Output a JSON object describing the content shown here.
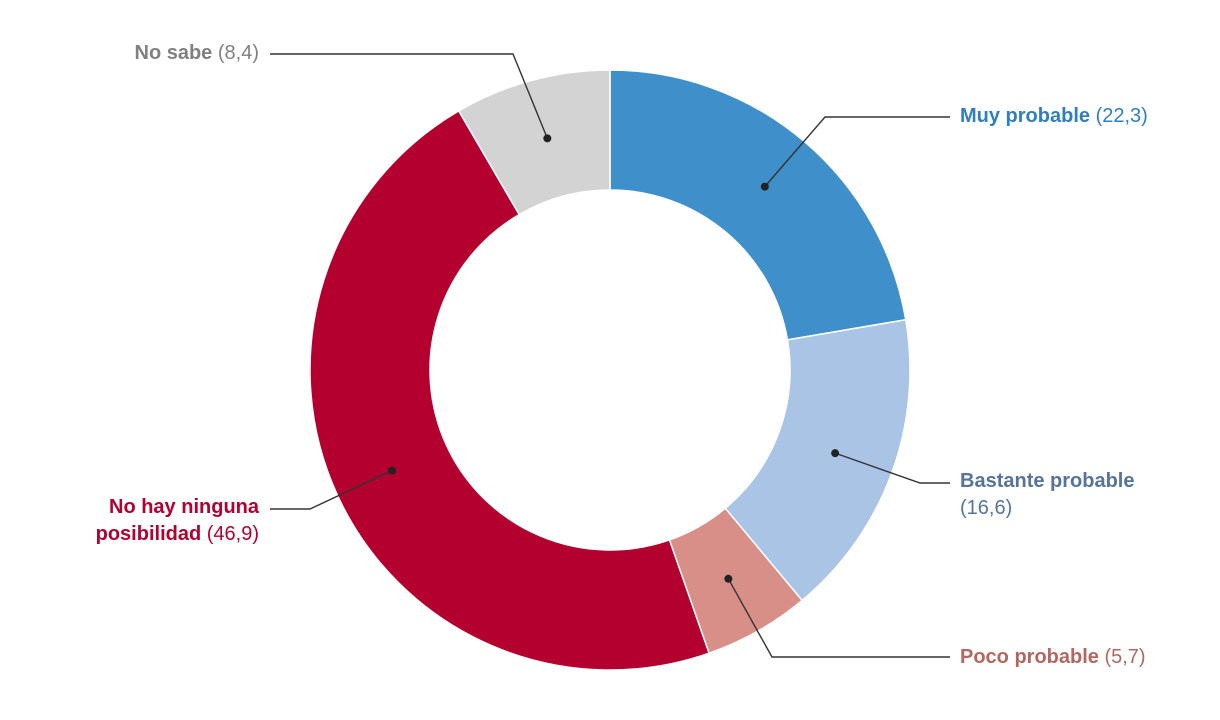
{
  "chart_data": {
    "type": "pie",
    "subtype": "donut",
    "title": "",
    "start_angle_deg": 0,
    "direction": "clockwise",
    "slices": [
      {
        "label": "Muy probable",
        "value": 22.3,
        "value_text": "(22,3)",
        "color": "#3f8fcb",
        "label_color": "#2f7fbf"
      },
      {
        "label": "Bastante probable",
        "value": 16.6,
        "value_text": "(16,6)",
        "color": "#aac4e6",
        "label_color": "#56749a"
      },
      {
        "label": "Poco probable",
        "value": 5.7,
        "value_text": "(5,7)",
        "color": "#d88f88",
        "label_color": "#b26761"
      },
      {
        "label": "No hay ninguna posibilidad",
        "label_lines": [
          "No hay ninguna",
          "posibilidad"
        ],
        "value": 46.9,
        "value_text": "(46,9)",
        "color": "#b4002f",
        "label_color": "#b4002f"
      },
      {
        "label": "No sabe",
        "value": 8.4,
        "value_text": "(8,4)",
        "color": "#d3d3d3",
        "label_color": "#808080"
      }
    ]
  }
}
